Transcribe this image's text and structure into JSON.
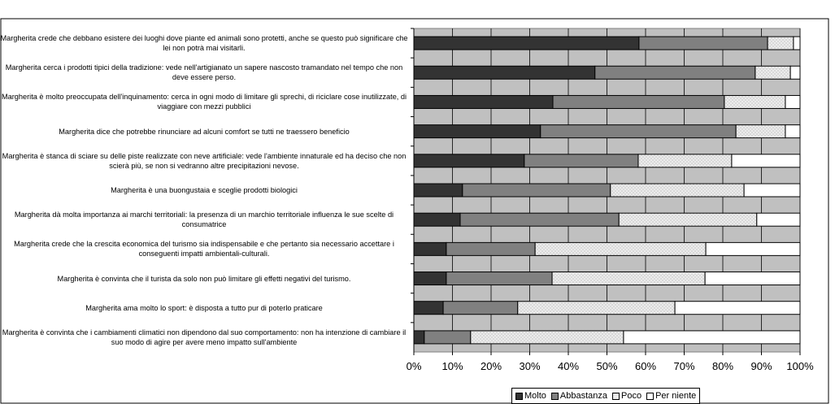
{
  "chart_data": {
    "type": "stacked-bar-horizontal",
    "categories": [
      "Margherita crede che debbano esistere dei luoghi dove piante ed animali sono protetti, anche se questo può significare che lei non potrà mai visitarli.",
      "Margherita cerca i prodotti tipici della tradizione: vede nell'artigianato un sapere nascosto tramandato nel tempo che non deve essere perso.",
      "Margherita è molto preoccupata dell'inquinamento: cerca in ogni modo di limitare gli sprechi, di riciclare cose inutilizzate, di viaggiare con mezzi pubblici",
      "Margherita dice che potrebbe rinunciare ad alcuni comfort se tutti ne traessero beneficio",
      "Margherita è stanca di sciare su delle piste realizzate con neve artificiale: vede l'ambiente innaturale ed ha deciso che non scierà più, se non si vedranno altre precipitazioni nevose.",
      "Margherita è una buongustaia e sceglie prodotti biologici",
      "Margherita dà molta importanza ai marchi territoriali: la presenza di un marchio territoriale influenza le sue scelte di consumatrice",
      "Margherita crede che la crescita economica del turismo sia indispensabile e che pertanto sia necessario accettare i conseguenti impatti ambientali-culturali.",
      "Margherita è convinta che il turista da solo non può limitare gli effetti negativi del turismo.",
      "Margherita ama molto lo sport: è disposta a tutto pur di poterlo praticare",
      "Margherita è convinta che i cambiamenti climatici non dipendono dal suo comportamento: non ha intenzione di cambiare il suo modo di agire per avere meno impatto sull'ambiente"
    ],
    "series": [
      {
        "name": "Molto",
        "color": "#333333",
        "values": [
          58.3,
          46.9,
          36.0,
          32.8,
          28.6,
          12.6,
          12.0,
          8.4,
          8.4,
          7.6,
          2.7
        ]
      },
      {
        "name": "Abbastanza",
        "color": "#808080",
        "values": [
          33.3,
          41.5,
          44.4,
          50.6,
          29.5,
          38.3,
          41.1,
          23.0,
          27.4,
          19.3,
          12.0
        ]
      },
      {
        "name": "Poco",
        "color": "#d9d9d9",
        "hatch": true,
        "values": [
          6.7,
          9.1,
          15.8,
          12.8,
          24.2,
          34.6,
          35.7,
          44.2,
          39.6,
          40.7,
          39.6
        ]
      },
      {
        "name": "Per niente",
        "color": "#ffffff",
        "values": [
          1.7,
          2.5,
          3.8,
          3.8,
          17.7,
          14.5,
          11.2,
          24.4,
          24.6,
          32.4,
          45.7
        ]
      }
    ],
    "xlim": [
      0,
      100
    ],
    "xticks": [
      {
        "value": 0,
        "label": "0%"
      },
      {
        "value": 10,
        "label": "10%"
      },
      {
        "value": 20,
        "label": "20%"
      },
      {
        "value": 30,
        "label": "30%"
      },
      {
        "value": 40,
        "label": "40%"
      },
      {
        "value": 50,
        "label": "50%"
      },
      {
        "value": 60,
        "label": "60%"
      },
      {
        "value": 70,
        "label": "70%"
      },
      {
        "value": 80,
        "label": "80%"
      },
      {
        "value": 90,
        "label": "90%"
      },
      {
        "value": 100,
        "label": "100%"
      }
    ],
    "grid": true,
    "plot_background": "#c0c0c0",
    "legend": "bottom"
  }
}
